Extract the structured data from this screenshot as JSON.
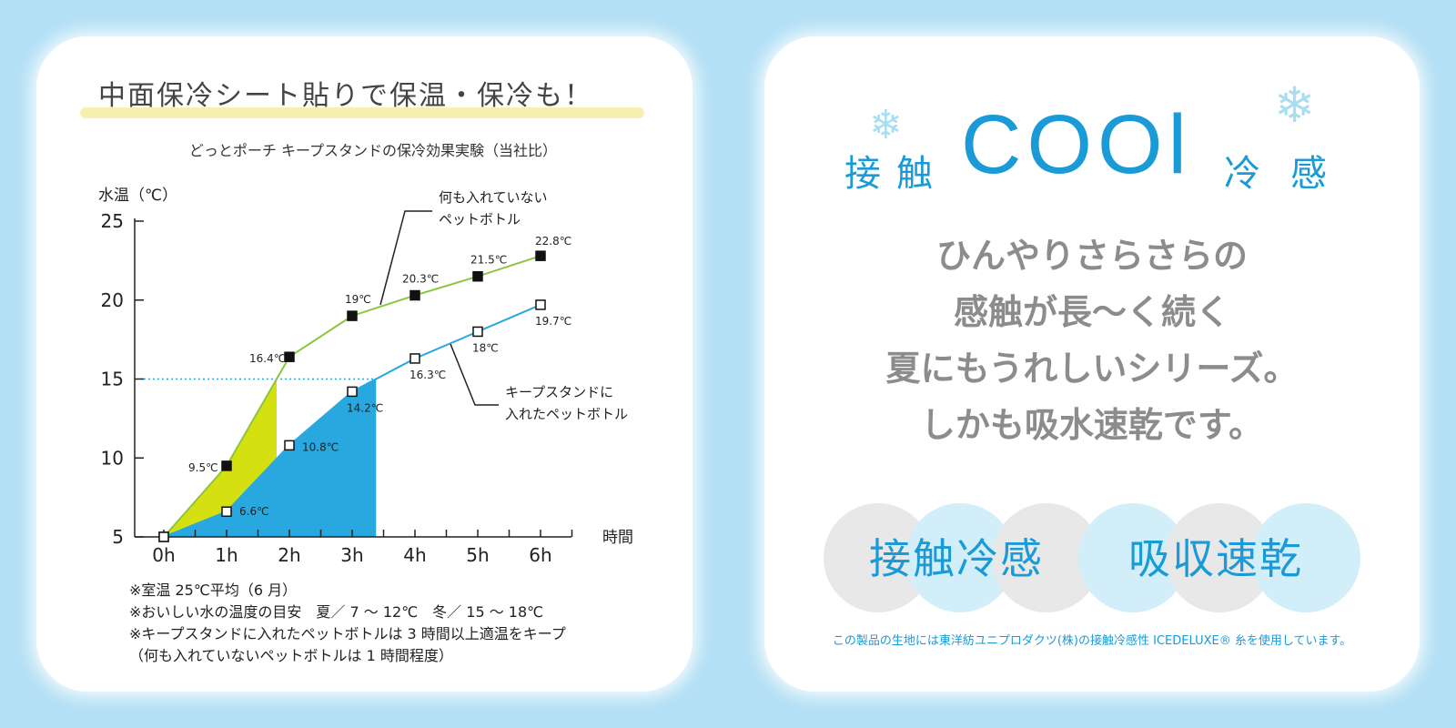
{
  "left": {
    "headline": "中面保冷シート貼りで保温・保冷も！",
    "notes": [
      "※室温 25℃平均（6 月）",
      "※おいしい水の温度の目安　夏／ 7 〜 12℃　冬／ 15 〜 18℃",
      "※キープスタンドに入れたペットボトルは 3 時間以上適温をキープ",
      "（何も入れていないペットボトルは 1 時間程度）"
    ]
  },
  "chart_data": {
    "type": "line",
    "title": "どっとポーチ キープスタンドの保冷効果実験（当社比）",
    "ylabel": "水温（℃）",
    "xlabel": "時間",
    "categories": [
      "0h",
      "1h",
      "2h",
      "3h",
      "4h",
      "5h",
      "6h"
    ],
    "y_ticks": [
      "5",
      "10",
      "15",
      "20",
      "25"
    ],
    "ylim": [
      5,
      25
    ],
    "reference_line": 15,
    "series": [
      {
        "name": "何も入れていないペットボトル",
        "values": [
          5,
          9.5,
          16.4,
          19,
          20.3,
          21.5,
          22.8
        ],
        "labels": [
          "",
          "9.5℃",
          "16.4℃",
          "19℃",
          "20.3℃",
          "21.5℃",
          "22.8℃"
        ],
        "color": "#8cc63f",
        "fill_color": "#d4e00f",
        "marker": "filled-square"
      },
      {
        "name": "キープスタンドに入れたペットボトル",
        "values": [
          5,
          6.6,
          10.8,
          14.2,
          16.3,
          18,
          19.7
        ],
        "labels": [
          "",
          "6.6℃",
          "10.8℃",
          "14.2℃",
          "16.3℃",
          "18℃",
          "19.7℃"
        ],
        "color": "#29a8e0",
        "fill_color": "#29a8e0",
        "marker": "open-square"
      }
    ],
    "callouts": [
      "何も入れていない",
      "ペットボトル",
      "キープスタンドに",
      "入れたペットボトル"
    ]
  },
  "right": {
    "cool_word": "COOl",
    "kanji": [
      "接",
      "触",
      "冷",
      "感"
    ],
    "body_lines": [
      "ひんやりさらさらの",
      "感触が長〜く続く",
      "夏にもうれしいシリーズ。",
      "しかも吸水速乾です。"
    ],
    "badges": [
      "接触冷感",
      "吸収速乾"
    ],
    "footnote": "この製品の生地には東洋紡ユニプロダクツ(株)の接触冷感性 ICEDELUXE® 糸を使用しています。",
    "snowflake_icon": "❄"
  }
}
